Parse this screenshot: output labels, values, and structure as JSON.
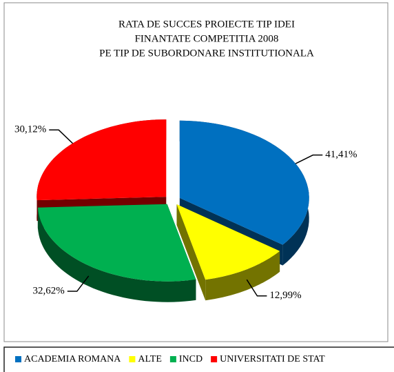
{
  "chart_data": {
    "type": "pie",
    "title": [
      "RATA DE SUCCES PROIECTE TIP IDEI",
      "FINANTATE COMPETITIA 2008",
      "PE TIP DE SUBORDONARE INSTITUTIONALA"
    ],
    "categories": [
      "ACADEMIA ROMANA",
      "ALTE",
      "INCD",
      "UNIVERSITATI DE STAT"
    ],
    "values": [
      41.41,
      12.99,
      32.62,
      30.12
    ],
    "value_labels": [
      "41,41%",
      "12,99%",
      "32,62%",
      "30,12%"
    ],
    "colors": [
      "#0070c0",
      "#ffff00",
      "#00b050",
      "#ff0000"
    ],
    "legend": "bottom"
  }
}
